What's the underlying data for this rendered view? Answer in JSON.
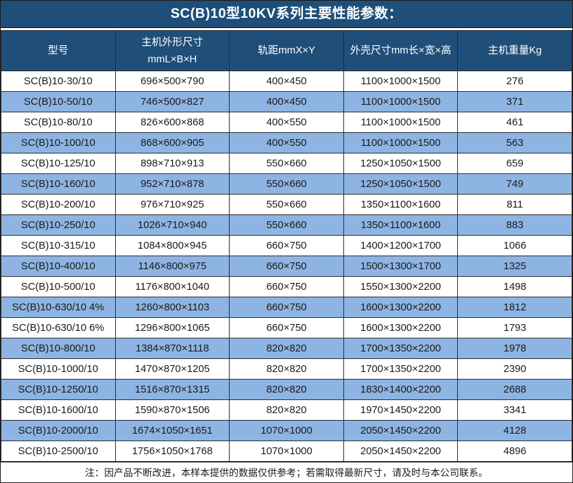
{
  "title": "SC(B)10型10KV系列主要性能参数：",
  "note": "注：因产品不断改进，本样本提供的数据仅供参考；若需取得最新尺寸，请及时与本公司联系。",
  "colors": {
    "header_bg": "#1F4E79",
    "header_text": "#FFFFFF",
    "row_alt_bg": "#8DB4E2",
    "cell_text": "#1A1A1A",
    "border": "#2B2B2B"
  },
  "chart_data": {
    "type": "table",
    "title": "SC(B)10型10KV系列主要性能参数：",
    "columns": [
      "型号",
      "主机外形尺寸\nmmL×B×H",
      "轨距mmX×Y",
      "外壳尺寸mm长×宽×高",
      "主机重量Kg"
    ],
    "rows": [
      [
        "SC(B)10-30/10",
        "696×500×790",
        "400×450",
        "1100×1000×1500",
        "276"
      ],
      [
        "SC(B)10-50/10",
        "746×500×827",
        "400×450",
        "1100×1000×1500",
        "371"
      ],
      [
        "SC(B)10-80/10",
        "826×600×868",
        "400×550",
        "1100×1000×1500",
        "461"
      ],
      [
        "SC(B)10-100/10",
        "868×600×905",
        "400×550",
        "1100×1000×1500",
        "563"
      ],
      [
        "SC(B)10-125/10",
        "898×710×913",
        "550×660",
        "1250×1050×1500",
        "659"
      ],
      [
        "SC(B)10-160/10",
        "952×710×878",
        "550×660",
        "1250×1050×1500",
        "749"
      ],
      [
        "SC(B)10-200/10",
        "976×710×925",
        "550×660",
        "1350×1100×1600",
        "811"
      ],
      [
        "SC(B)10-250/10",
        "1026×710×940",
        "550×660",
        "1350×1100×1600",
        "883"
      ],
      [
        "SC(B)10-315/10",
        "1084×800×945",
        "660×750",
        "1400×1200×1700",
        "1066"
      ],
      [
        "SC(B)10-400/10",
        "1146×800×975",
        "660×750",
        "1500×1300×1700",
        "1325"
      ],
      [
        "SC(B)10-500/10",
        "1176×800×1040",
        "660×750",
        "1550×1300×2200",
        "1498"
      ],
      [
        "SC(B)10-630/10 4%",
        "1260×800×1103",
        "660×750",
        "1600×1300×2200",
        "1812"
      ],
      [
        "SC(B)10-630/10 6%",
        "1296×800×1065",
        "660×750",
        "1600×1300×2200",
        "1793"
      ],
      [
        "SC(B)10-800/10",
        "1384×870×1118",
        "820×820",
        "1700×1350×2200",
        "1978"
      ],
      [
        "SC(B)10-1000/10",
        "1470×870×1205",
        "820×820",
        "1700×1350×2200",
        "2390"
      ],
      [
        "SC(B)10-1250/10",
        "1516×870×1315",
        "820×820",
        "1830×1400×2200",
        "2688"
      ],
      [
        "SC(B)10-1600/10",
        "1590×870×1506",
        "820×820",
        "1970×1450×2200",
        "3341"
      ],
      [
        "SC(B)10-2000/10",
        "1674×1050×1651",
        "1070×1000",
        "2050×1450×2200",
        "4128"
      ],
      [
        "SC(B)10-2500/10",
        "1756×1050×1768",
        "1070×1000",
        "2050×1450×2200",
        "4896"
      ]
    ],
    "note": "注：因产品不断改进，本样本提供的数据仅供参考；若需取得最新尺寸，请及时与本公司联系。"
  }
}
